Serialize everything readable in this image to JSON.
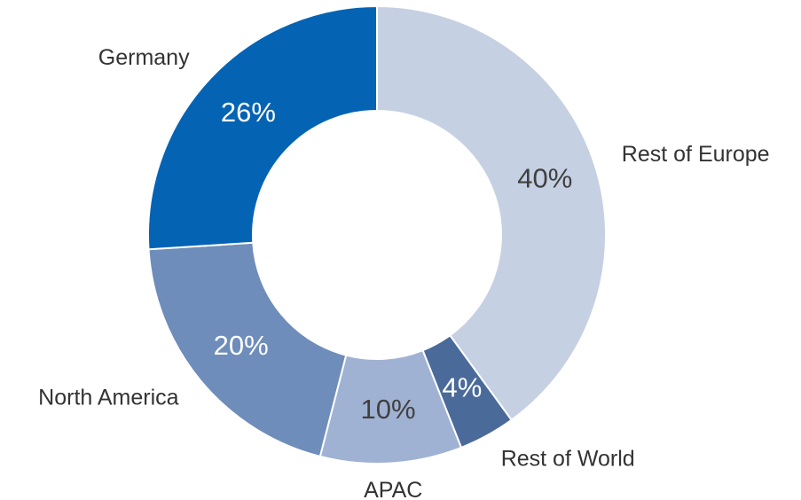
{
  "chart_data": {
    "type": "donut",
    "categories": [
      "Rest of Europe",
      "Rest of World",
      "APAC",
      "North America",
      "Germany"
    ],
    "values": [
      40,
      4,
      10,
      20,
      26
    ],
    "value_labels": [
      "40%",
      "4%",
      "10%",
      "20%",
      "26%"
    ],
    "colors": [
      "#c5d0e3",
      "#4a6a9a",
      "#a0b2d3",
      "#6e8dba",
      "#0563b4"
    ],
    "label_colors": [
      "#404040",
      "#ffffff",
      "#404040",
      "#ffffff",
      "#ffffff"
    ]
  }
}
